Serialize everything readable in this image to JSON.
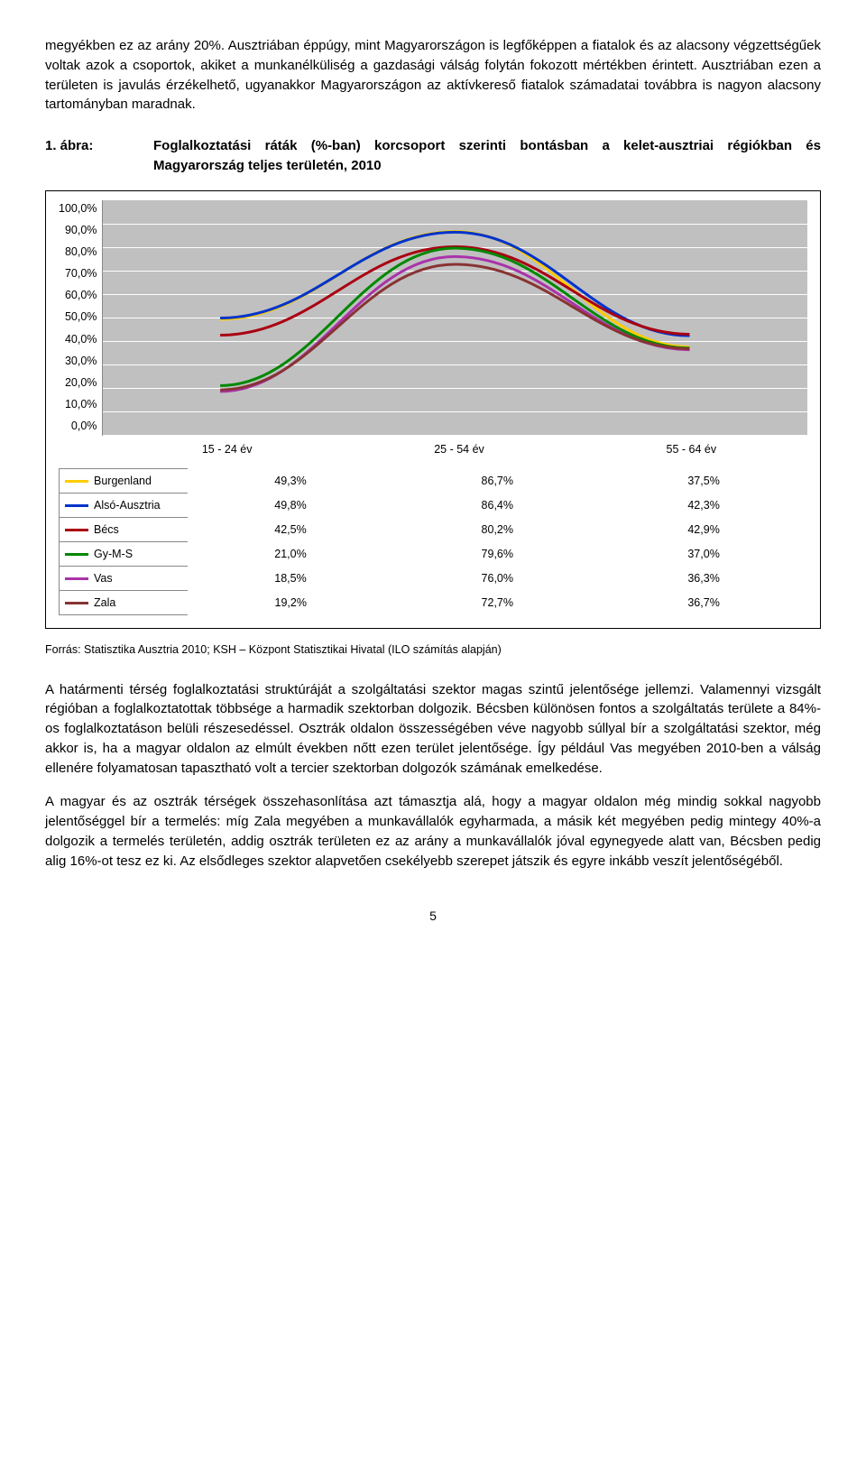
{
  "para1": "megyékben ez az arány 20%. Ausztriában éppúgy, mint Magyarországon is legfőképpen a fiatalok és az alacsony végzettségűek voltak azok a csoportok, akiket a munkanélküliség a gazdasági válság folytán fokozott mértékben érintett. Ausztriában ezen a területen is javulás érzékelhető, ugyanakkor Magyarországon az aktívkereső fiatalok számadatai továbbra is nagyon alacsony tartományban maradnak.",
  "figure_label": "1. ábra:",
  "figure_title": "Foglalkoztatási ráták (%-ban) korcsoport szerinti bontásban a kelet-ausztriai régiókban és Magyarország teljes területén, 2010",
  "chart": {
    "type": "line",
    "background_color": "#c0c0c0",
    "grid_color": "#ffffff",
    "axis_color": "#888888",
    "ylim": [
      0,
      100
    ],
    "ytick_step": 10,
    "y_ticks": [
      "100,0%",
      "90,0%",
      "80,0%",
      "70,0%",
      "60,0%",
      "50,0%",
      "40,0%",
      "30,0%",
      "20,0%",
      "10,0%",
      "0,0%"
    ],
    "categories": [
      "15 - 24 év",
      "25 - 54 év",
      "55 - 64 év"
    ],
    "line_width": 3,
    "series": [
      {
        "name": "Burgenland",
        "color": "#ffcc00",
        "values": [
          49.3,
          86.7,
          37.5
        ],
        "labels": [
          "49,3%",
          "86,7%",
          "37,5%"
        ]
      },
      {
        "name": "Alsó-Ausztria",
        "color": "#0033cc",
        "values": [
          49.8,
          86.4,
          42.3
        ],
        "labels": [
          "49,8%",
          "86,4%",
          "42,3%"
        ]
      },
      {
        "name": "Bécs",
        "color": "#aa0011",
        "values": [
          42.5,
          80.2,
          42.9
        ],
        "labels": [
          "42,5%",
          "80,2%",
          "42,9%"
        ]
      },
      {
        "name": "Gy-M-S",
        "color": "#008800",
        "values": [
          21.0,
          79.6,
          37.0
        ],
        "labels": [
          "21,0%",
          "79,6%",
          "37,0%"
        ]
      },
      {
        "name": "Vas",
        "color": "#aa33aa",
        "values": [
          18.5,
          76.0,
          36.3
        ],
        "labels": [
          "18,5%",
          "76,0%",
          "36,3%"
        ]
      },
      {
        "name": "Zala",
        "color": "#883333",
        "values": [
          19.2,
          72.7,
          36.7
        ],
        "labels": [
          "19,2%",
          "72,7%",
          "36,7%"
        ]
      }
    ]
  },
  "source": "Forrás: Statisztika Ausztria 2010; KSH – Központ Statisztikai Hivatal (ILO számítás alapján)",
  "para2": "A határmenti térség foglalkoztatási struktúráját a szolgáltatási szektor magas szintű jelentősége jellemzi. Valamennyi vizsgált régióban a foglalkoztatottak többsége a harmadik szektorban dolgozik.  Bécsben különösen fontos a szolgáltatás területe a 84%-os foglalkoztatáson belüli részesedéssel. Osztrák oldalon összességében véve nagyobb súllyal bír a szolgáltatási szektor, még akkor is, ha a magyar oldalon az elmúlt években nőtt ezen terület jelentősége. Így például Vas megyében 2010-ben a válság ellenére folyamatosan tapasztható volt a tercier szektorban dolgozók számának emelkedése.",
  "para3": "A magyar és az osztrák térségek összehasonlítása azt támasztja alá, hogy a magyar oldalon még mindig sokkal nagyobb jelentőséggel bír a termelés: míg Zala megyében a munkavállalók egyharmada, a másik két megyében pedig mintegy 40%-a dolgozik a termelés területén, addig osztrák területen ez az arány a munkavállalók jóval egynegyede alatt van, Bécsben pedig alig 16%-ot tesz ez ki. Az elsődleges szektor alapvetően csekélyebb szerepet játszik és egyre inkább veszít jelentőségéből.",
  "page_number": "5"
}
